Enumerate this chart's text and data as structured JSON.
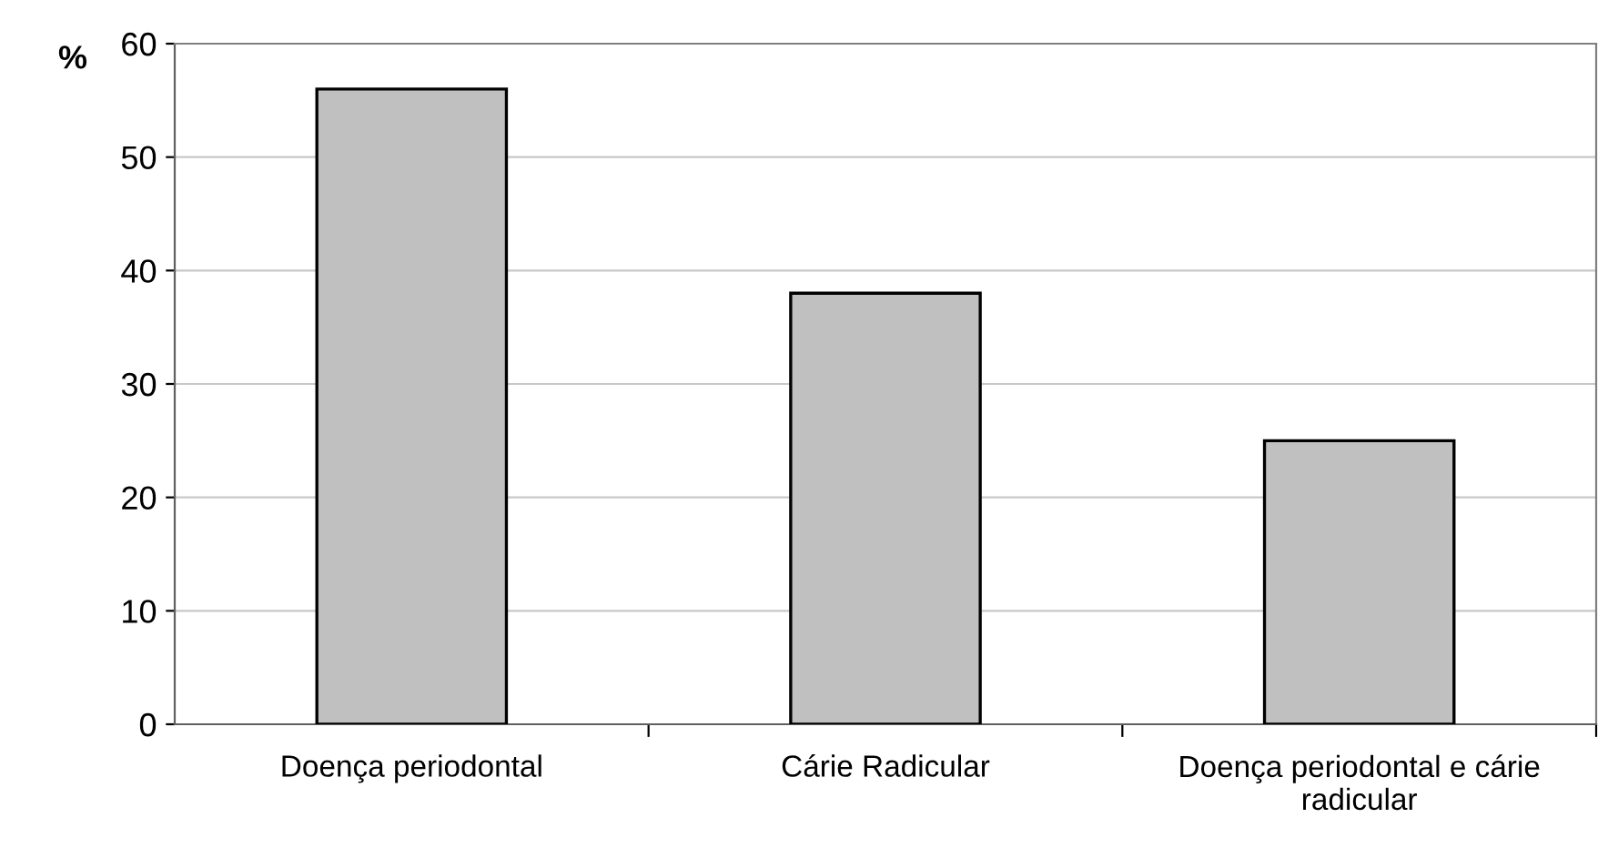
{
  "chart_data": {
    "type": "bar",
    "ylabel": "%",
    "categories": [
      "Doença periodontal",
      "Cárie Radicular",
      "Doença periodontal e cárie\nradicular"
    ],
    "values": [
      56,
      38,
      25
    ],
    "color": "#c0c0c0",
    "ylim": [
      0,
      60
    ],
    "yticks": [
      0,
      10,
      20,
      30,
      40,
      50,
      60
    ],
    "grid": "y"
  }
}
